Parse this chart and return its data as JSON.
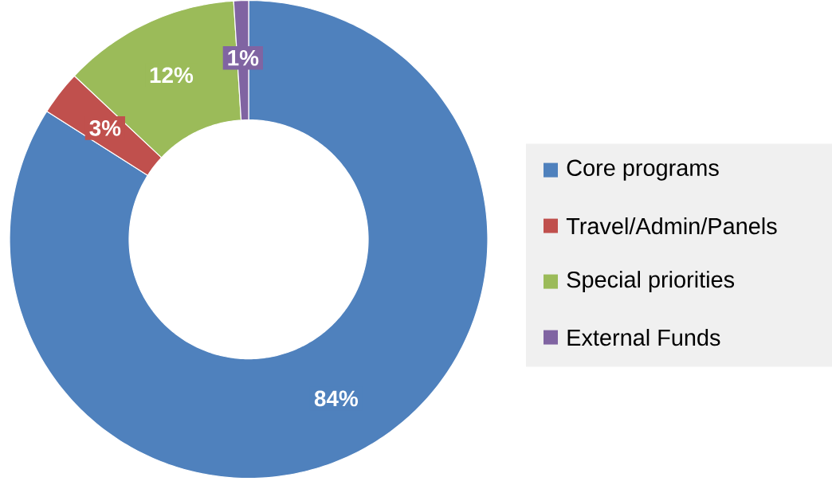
{
  "chart_data": {
    "type": "donut",
    "categories": [
      "Core programs",
      "Travel/Admin/Panels",
      "Special priorities",
      "External Funds"
    ],
    "values": [
      84,
      3,
      12,
      1
    ],
    "value_labels": [
      "84%",
      "3%",
      "12%",
      "1%"
    ],
    "colors": [
      "#4f81bd",
      "#c0504d",
      "#9bbb59",
      "#8064a2"
    ],
    "legend": "right"
  }
}
